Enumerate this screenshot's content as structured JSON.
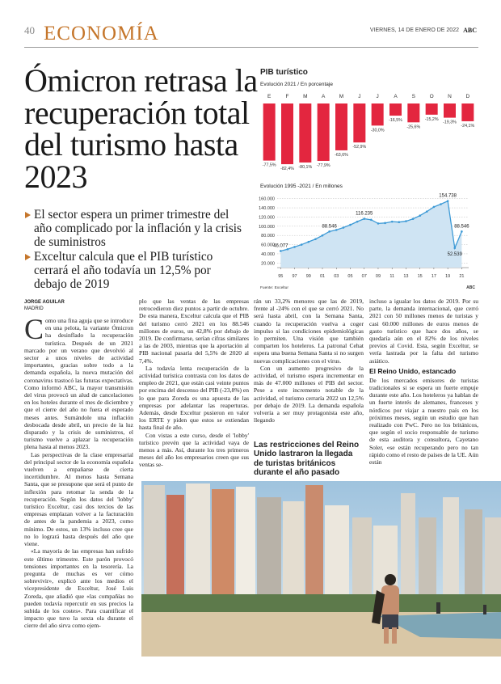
{
  "header": {
    "page_number": "40",
    "section": "ECONOMÍA",
    "date": "VIERNES, 14 DE ENERO DE 2022",
    "brand": "ABC"
  },
  "headline": "Ómicron retrasa la recuperación total del turismo hasta 2023",
  "highlights": [
    "El sector espera un primer trimestre del año complicado por la inflación y la crisis de suministros",
    "Exceltur calcula que el PIB turístico cerrará el año todavía un 12,5% por debajo de 2019"
  ],
  "byline": {
    "author": "JORGE AGUILAR",
    "location": "MADRID"
  },
  "article": {
    "columns": [
      {
        "paragraphs": [
          "Como una fina aguja que se introduce en una pelota, la variante Ómicron ha desinflado la recuperación turística. Después de un 2021 marcado por un verano que devolvió al sector a unos niveles de actividad importantes, gracias sobre todo a la demanda española, la nueva mutación del coronavirus trastocó las futuras expectativas. Como informó ABC, la mayor transmisión del virus provocó un alud de cancelaciones en los hoteles durante el mes de diciembre y que el cierre del año no fuera el esperado meses antes. Sumándole una inflación desbocada desde abril, un precio de la luz disparado y la crisis de suministros, el turismo vuelve a aplazar la recuperación plena hasta al menos 2023.",
          "Las perspectivas de la clase empresarial del principal sector de la economía española vuelven a empañarse de cierta incertidumbre. Al menos hasta Semana Santa, que se presupone que será el punto de inflexión para retomar la senda de la recuperación. Según los datos del 'lobby' turístico Exceltur, casi dos tercios de las empresas emplazan volver a la facturación de antes de la pandemia a 2023, como mínimo. De estos, un 13% incluso cree que no lo logrará hasta después del año que viene.",
          "«La mayoría de las empresas han sufrido este último trimestre. Este parón provocó tensiones importantes en la tesorería. La pregunta de muchas es ver cómo sobrevivir», explicó ante los medios el vicepresidente de Exceltur, José Luis Zoreda, que añadió que «las compañías no pueden todavía repercutir en sus precios la subida de los costes». Para cuantificar el impacto que tuvo la sexta ola durante el cierre del año sirva como ejem-"
        ]
      },
      {
        "paragraphs": [
          "plo que las ventas de las empresas retrocedieron diez puntos a partir de octubre. De esta manera, Exceltur calcula que el PIB del turismo cerró 2021 en los 88.546 millones de euros, un 42,8% por debajo de 2019. De confirmarse, serían cifras similares a las de 2003, mientras que la aportación al PIB nacional pasaría del 5,5% de 2020 al 7,4%.",
          "La todavía lenta recuperación de la actividad turística contrasta con los datos de empleo de 2021, que están casi veinte puntos por encima del descenso del PIB (-23,8%) en lo que para Zoreda es una apuesta de las empresas por adelantar las reaperturas. Además, desde Exceltur pusieron en valor los ERTE y piden que estos se extiendan hasta final de año.",
          "Con vistas a este curso, desde el 'lobby' turístico prevén que la actividad vaya de menos a más. Así, durante los tres primeros meses del año los empresarios creen que sus ventas se-"
        ]
      },
      {
        "paragraphs": [
          "rán un 33,2% menores que las de 2019, frente al -24% con el que se cerró 2021. No será hasta abril, con la Semana Santa, cuando la recuperación vuelva a coger impulso si las condiciones epidemiológicas lo permiten. Una visión que también comparten los hoteleros. La patronal Cehat espera una buena Semana Santa si no surgen nuevas complicaciones con el virus.",
          "Con un aumento progresivo de la actividad, el turismo espera incrementar en más de 47.000 millones el PIB del sector. Pese a este incremento notable de la actividad, el turismo cerraría 2022 un 12,5% por debajo de 2019. La demanda española volvería a ser muy protagonista este año, llegando"
        ]
      },
      {
        "paragraphs": [
          "incluso a igualar los datos de 2019. Por su parte, la demanda internacional, que cerró 2021 con 50 millones menos de turistas y casi 60.000 millones de euros menos de gasto turístico que hace dos años, se quedaría aún en el 82% de los niveles previos al Covid. Esta, según Exceltur, se vería lastrada por la falta del turismo asiático.",
          "De los mercados emisores de turistas tradicionales si se espera un fuerte empuje durante este año. Los hoteleros ya hablan de un fuerte interés de alemanes, franceses y nórdicos por viajar a nuestro país en los próximos meses, según un estudio que han realizado con PwC. Pero no los británicos, que según el socio responsable de turismo de esta auditora y consultora, Cayetano Soler, «se están recuperando pero no tan rápido como el resto de países de la UE. Aún están"
        ],
        "heading": "El Reino Unido, estancado"
      }
    ],
    "photo_caption": "Las restricciones del Reino Unido lastraron la llegada de turistas británicos durante el año pasado"
  },
  "chart_data": [
    {
      "type": "bar",
      "title": "PIB turístico",
      "subtitle": "Evolución 2021 / En porcentaje",
      "categories": [
        "E",
        "F",
        "M",
        "A",
        "M",
        "J",
        "J",
        "A",
        "S",
        "O",
        "N",
        "D"
      ],
      "values": [
        -77.5,
        -82.4,
        -80.1,
        -77.9,
        -63.6,
        -52.9,
        -30.0,
        -16.5,
        -25.6,
        -15.2,
        -19.3,
        -24.1
      ],
      "value_labels": [
        "-77,5%",
        "-82,4%",
        "-80,1%",
        "-77,9%",
        "-63,6%",
        "-52,9%",
        "-30,0%",
        "-16,5%",
        "-25,6%",
        "-15,2%",
        "-19,3%",
        "-24,1%"
      ],
      "color": "#e3263f",
      "ylim": [
        -90,
        0
      ]
    },
    {
      "type": "area",
      "subtitle": "Evolución 1995 -2021 / En millones",
      "x": [
        1995,
        1996,
        1997,
        1998,
        1999,
        2000,
        2001,
        2002,
        2003,
        2004,
        2005,
        2006,
        2007,
        2008,
        2009,
        2010,
        2011,
        2012,
        2013,
        2014,
        2015,
        2016,
        2017,
        2018,
        2019,
        2020,
        2021
      ],
      "values": [
        46077,
        50000,
        55000,
        60000,
        66000,
        72000,
        80000,
        88546,
        92000,
        97000,
        103000,
        110000,
        116235,
        114000,
        106000,
        107000,
        110000,
        109000,
        111000,
        116000,
        123000,
        132000,
        142000,
        148000,
        154738,
        52539,
        88546
      ],
      "value_labels": [
        "46.077",
        null,
        null,
        null,
        null,
        null,
        null,
        "88.546",
        null,
        null,
        null,
        null,
        "116.235",
        null,
        null,
        null,
        null,
        null,
        null,
        null,
        null,
        null,
        null,
        null,
        "154.738",
        "52.539",
        "88.546"
      ],
      "color": "#3d9ad6",
      "fill": "#cfe4f3",
      "xlim": [
        1994.5,
        2022
      ],
      "xticks": [
        {
          "value": 1995,
          "label": "95"
        },
        {
          "value": 1997,
          "label": "97"
        },
        {
          "value": 1999,
          "label": "99"
        },
        {
          "value": 2001,
          "label": "01"
        },
        {
          "value": 2003,
          "label": "03"
        },
        {
          "value": 2005,
          "label": "05"
        },
        {
          "value": 2007,
          "label": "07"
        },
        {
          "value": 2009,
          "label": "09"
        },
        {
          "value": 2011,
          "label": "11"
        },
        {
          "value": 2013,
          "label": "13"
        },
        {
          "value": 2015,
          "label": "15"
        },
        {
          "value": 2017,
          "label": "17"
        },
        {
          "value": 2019,
          "label": "19"
        },
        {
          "value": 2021,
          "label": "21"
        }
      ],
      "ylim": [
        10000,
        170000
      ],
      "yticks": [
        {
          "value": 20000,
          "label": "20.000"
        },
        {
          "value": 40000,
          "label": "40.000"
        },
        {
          "value": 60000,
          "label": "60.000"
        },
        {
          "value": 80000,
          "label": "80.000"
        },
        {
          "value": 100000,
          "label": "100.000"
        },
        {
          "value": 120000,
          "label": "120.000"
        },
        {
          "value": 140000,
          "label": "140.000"
        },
        {
          "value": 160000,
          "label": "160.000"
        }
      ],
      "grid": true,
      "source": "Fuente: Exceltur",
      "credit": "ABC"
    }
  ]
}
